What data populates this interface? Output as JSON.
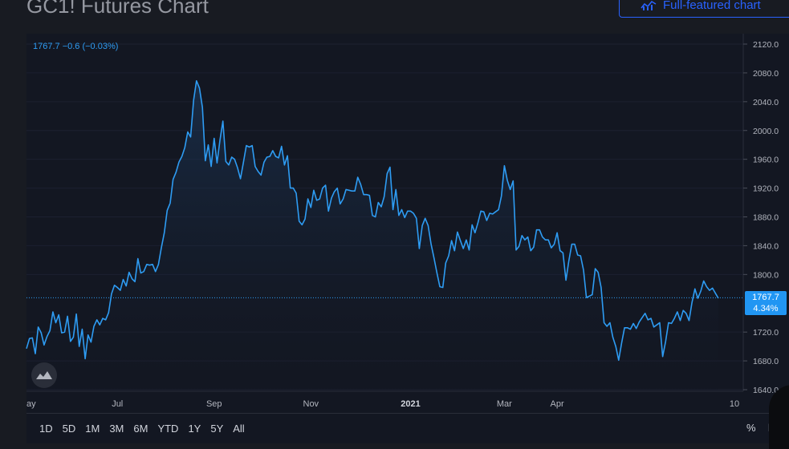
{
  "page": {
    "title": "GC1! Futures Chart",
    "full_featured_label": "Full-featured chart"
  },
  "legend": {
    "text": "1767.7 −0.6 (−0.03%)"
  },
  "price_tag": {
    "price": "1767.7",
    "percent": "4.34%"
  },
  "toolbar": {
    "ranges": [
      "1D",
      "5D",
      "1M",
      "3M",
      "6M",
      "YTD",
      "1Y",
      "5Y",
      "All"
    ],
    "percent_label": "%",
    "log_label": "lo"
  },
  "colors": {
    "line": "#2e9cf3",
    "accent": "#2962ff",
    "background": "#131722"
  },
  "chart_data": {
    "type": "area",
    "title": "GC1! Futures Chart",
    "y_axis_side": "right",
    "ylim": [
      1640,
      2120
    ],
    "y_ticks": [
      "2120.0",
      "2080.0",
      "2040.0",
      "2000.0",
      "1960.0",
      "1920.0",
      "1880.0",
      "1840.0",
      "1800.0",
      "1720.0",
      "1680.0",
      "1640.0"
    ],
    "x_ticks": [
      "ay",
      "Jul",
      "Sep",
      "Nov",
      "2021",
      "Mar",
      "Apr",
      "10"
    ],
    "last_value": 1767.7,
    "series": [
      {
        "values": [
          1697,
          1711,
          1712,
          1690,
          1727,
          1719,
          1702,
          1714,
          1722,
          1748,
          1733,
          1744,
          1719,
          1720,
          1742,
          1707,
          1713,
          1745,
          1700,
          1724,
          1683,
          1716,
          1706,
          1728,
          1737,
          1730,
          1739,
          1737,
          1747,
          1773,
          1785,
          1782,
          1778,
          1793,
          1784,
          1803,
          1794,
          1790,
          1822,
          1802,
          1804,
          1814,
          1813,
          1814,
          1804,
          1814,
          1837,
          1858,
          1889,
          1899,
          1932,
          1942,
          1956,
          1964,
          1976,
          1998,
          1991,
          2042,
          2069,
          2059,
          2032,
          1958,
          1980,
          1950,
          1989,
          1955,
          1987,
          2013,
          1957,
          1952,
          1963,
          1960,
          1948,
          1933,
          1956,
          1979,
          1977,
          1979,
          1950,
          1943,
          1938,
          1956,
          1963,
          1964,
          1972,
          1964,
          1962,
          1978,
          1952,
          1965,
          1920,
          1920,
          1913,
          1874,
          1869,
          1877,
          1905,
          1893,
          1917,
          1903,
          1905,
          1920,
          1924,
          1888,
          1906,
          1915,
          1920,
          1898,
          1905,
          1918,
          1917,
          1916,
          1916,
          1935,
          1925,
          1911,
          1911,
          1910,
          1882,
          1880,
          1900,
          1894,
          1908,
          1940,
          1949,
          1890,
          1918,
          1882,
          1890,
          1879,
          1888,
          1888,
          1885,
          1878,
          1836,
          1868,
          1878,
          1868,
          1842,
          1823,
          1802,
          1783,
          1782,
          1816,
          1826,
          1847,
          1833,
          1859,
          1847,
          1836,
          1848,
          1834,
          1869,
          1858,
          1872,
          1888,
          1887,
          1875,
          1885,
          1884,
          1887,
          1890,
          1909,
          1951,
          1931,
          1918,
          1930,
          1834,
          1839,
          1854,
          1848,
          1852,
          1833,
          1838,
          1862,
          1862,
          1852,
          1848,
          1848,
          1837,
          1842,
          1858,
          1833,
          1830,
          1792,
          1819,
          1842,
          1842,
          1827,
          1826,
          1806,
          1768,
          1770,
          1772,
          1808,
          1803,
          1782,
          1733,
          1728,
          1733,
          1713,
          1700,
          1681,
          1705,
          1726,
          1726,
          1724,
          1732,
          1725,
          1734,
          1740,
          1746,
          1737,
          1739,
          1727,
          1730,
          1733,
          1686,
          1707,
          1733,
          1732,
          1739,
          1748,
          1736,
          1750,
          1746,
          1736,
          1761,
          1780,
          1767,
          1777,
          1791,
          1783,
          1778,
          1781,
          1774,
          1767
        ]
      }
    ]
  }
}
